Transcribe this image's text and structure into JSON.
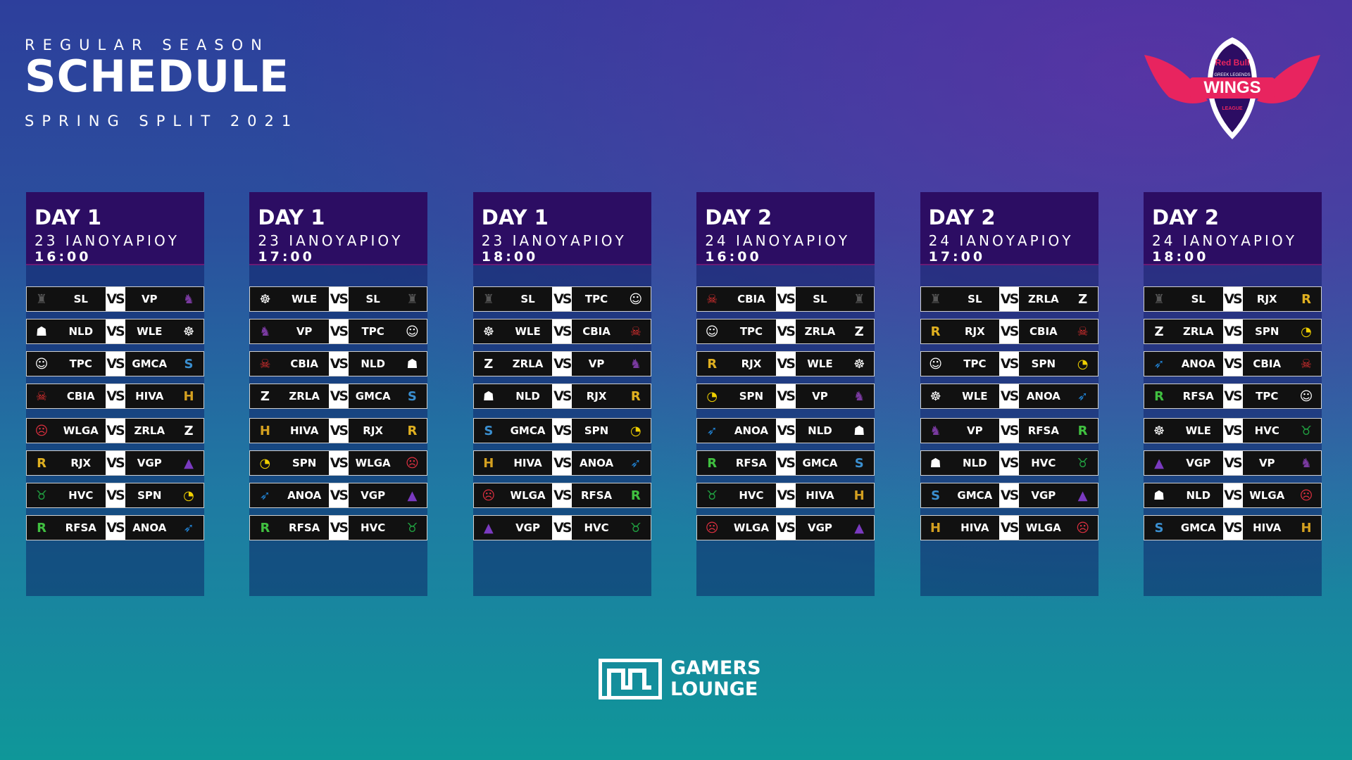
{
  "header": {
    "season": "REGULAR SEASON",
    "title": "SCHEDULE",
    "split": "SPRING SPLIT 2021"
  },
  "logo": {
    "brand": "Red Bull",
    "subtitle": "GREEK LEGENDS",
    "name": "WINGS",
    "league": "LEAGUE"
  },
  "vs_label": "VS",
  "footer": {
    "line1": "GAMERS",
    "line2": "LOUNGE"
  },
  "colors": {
    "column_header": "#2c0d63",
    "logo_pink": "#e8245f"
  },
  "columns": [
    {
      "day": "DAY 1",
      "date": "23 ΙΑΝΟΥΑΡΙΟΥ",
      "time": "16:00",
      "matches": [
        [
          "SL",
          "VP"
        ],
        [
          "NLD",
          "WLE"
        ],
        [
          "TPC",
          "GMCA"
        ],
        [
          "CBIA",
          "HIVA"
        ],
        [
          "WLGA",
          "ZRLA"
        ],
        [
          "RJX",
          "VGP"
        ],
        [
          "HVC",
          "SPN"
        ],
        [
          "RFSA",
          "ANOA"
        ]
      ]
    },
    {
      "day": "DAY 1",
      "date": "23 ΙΑΝΟΥΑΡΙΟΥ",
      "time": "17:00",
      "matches": [
        [
          "WLE",
          "SL"
        ],
        [
          "VP",
          "TPC"
        ],
        [
          "CBIA",
          "NLD"
        ],
        [
          "ZRLA",
          "GMCA"
        ],
        [
          "HIVA",
          "RJX"
        ],
        [
          "SPN",
          "WLGA"
        ],
        [
          "ANOA",
          "VGP"
        ],
        [
          "RFSA",
          "HVC"
        ]
      ]
    },
    {
      "day": "DAY 1",
      "date": "23 ΙΑΝΟΥΑΡΙΟΥ",
      "time": "18:00",
      "matches": [
        [
          "SL",
          "TPC"
        ],
        [
          "WLE",
          "CBIA"
        ],
        [
          "ZRLA",
          "VP"
        ],
        [
          "NLD",
          "RJX"
        ],
        [
          "GMCA",
          "SPN"
        ],
        [
          "HIVA",
          "ANOA"
        ],
        [
          "WLGA",
          "RFSA"
        ],
        [
          "VGP",
          "HVC"
        ]
      ]
    },
    {
      "day": "DAY 2",
      "date": "24 ΙΑΝΟΥΑΡΙΟΥ",
      "time": "16:00",
      "matches": [
        [
          "CBIA",
          "SL"
        ],
        [
          "TPC",
          "ZRLA"
        ],
        [
          "RJX",
          "WLE"
        ],
        [
          "SPN",
          "VP"
        ],
        [
          "ANOA",
          "NLD"
        ],
        [
          "RFSA",
          "GMCA"
        ],
        [
          "HVC",
          "HIVA"
        ],
        [
          "WLGA",
          "VGP"
        ]
      ]
    },
    {
      "day": "DAY 2",
      "date": "24 ΙΑΝΟΥΑΡΙΟΥ",
      "time": "17:00",
      "matches": [
        [
          "SL",
          "ZRLA"
        ],
        [
          "RJX",
          "CBIA"
        ],
        [
          "TPC",
          "SPN"
        ],
        [
          "WLE",
          "ANOA"
        ],
        [
          "VP",
          "RFSA"
        ],
        [
          "NLD",
          "HVC"
        ],
        [
          "GMCA",
          "VGP"
        ],
        [
          "HIVA",
          "WLGA"
        ]
      ]
    },
    {
      "day": "DAY 2",
      "date": "24 ΙΑΝΟΥΑΡΙΟΥ",
      "time": "18:00",
      "matches": [
        [
          "SL",
          "RJX"
        ],
        [
          "ZRLA",
          "SPN"
        ],
        [
          "ANOA",
          "CBIA"
        ],
        [
          "RFSA",
          "TPC"
        ],
        [
          "WLE",
          "HVC"
        ],
        [
          "VGP",
          "VP"
        ],
        [
          "NLD",
          "WLGA"
        ],
        [
          "GMCA",
          "HIVA"
        ]
      ]
    }
  ],
  "team_logos": {
    "SL": {
      "icon": "helmet-icon",
      "color": "#555555",
      "glyph": "♜"
    },
    "VP": {
      "icon": "dragon-icon",
      "color": "#7a3aa0",
      "glyph": "♞"
    },
    "NLD": {
      "icon": "tiger-icon",
      "color": "#ffffff",
      "glyph": "☗"
    },
    "WLE": {
      "icon": "lion-icon",
      "color": "#ffffff",
      "glyph": "☸"
    },
    "TPC": {
      "icon": "ghost-mask-icon",
      "color": "#ffffff",
      "glyph": "☺"
    },
    "GMCA": {
      "icon": "gamer-icon",
      "color": "#3a8fd0",
      "glyph": "S"
    },
    "CBIA": {
      "icon": "boy-squad-icon",
      "color": "#e03030",
      "glyph": "☠"
    },
    "HIVA": {
      "icon": "h-crest-icon",
      "color": "#d4a020",
      "glyph": "H"
    },
    "WLGA": {
      "icon": "angry-face-icon",
      "color": "#e03040",
      "glyph": "☹"
    },
    "ZRLA": {
      "icon": "z-slash-icon",
      "color": "#ffffff",
      "glyph": "Z"
    },
    "RJX": {
      "icon": "rjx-mark-icon",
      "color": "#e0b020",
      "glyph": "R"
    },
    "VGP": {
      "icon": "void-icon",
      "color": "#7a3ac0",
      "glyph": "▲"
    },
    "HVC": {
      "icon": "bull-icon",
      "color": "#20a040",
      "glyph": "♉"
    },
    "SPN": {
      "icon": "pacman-icon",
      "color": "#f0d000",
      "glyph": "◔"
    },
    "RFSA": {
      "icon": "r-bolt-icon",
      "color": "#40c040",
      "glyph": "R"
    },
    "ANOA": {
      "icon": "eagle-icon",
      "color": "#2080d0",
      "glyph": "➶"
    }
  }
}
